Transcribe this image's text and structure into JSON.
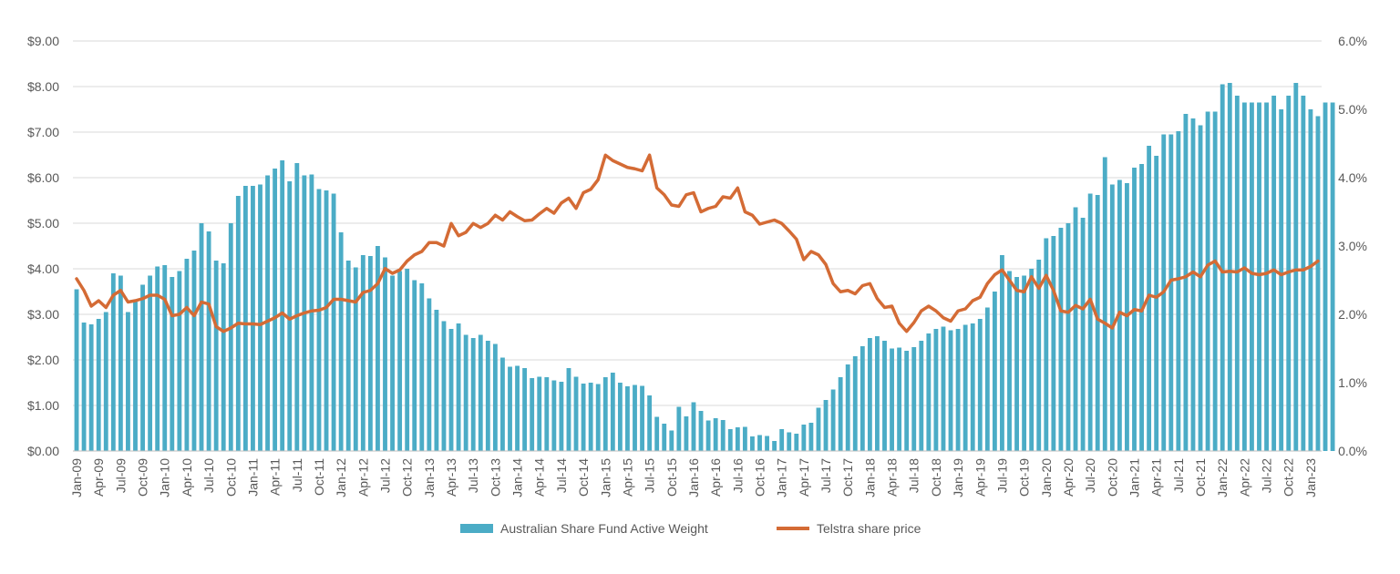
{
  "chart_data": {
    "type": "bar+line",
    "title": "",
    "xlabel": "",
    "ylabel_left": "",
    "ylabel_right": "",
    "grid": "horizontal",
    "legend_position": "bottom",
    "x_start": "2009-01",
    "months": 170,
    "x_tick_labels": [
      "Jan-09",
      "Apr-09",
      "Jul-09",
      "Oct-09",
      "Jan-10",
      "Apr-10",
      "Jul-10",
      "Oct-10",
      "Jan-11",
      "Apr-11",
      "Jul-11",
      "Oct-11",
      "Jan-12",
      "Apr-12",
      "Jul-12",
      "Oct-12",
      "Jan-13",
      "Apr-13",
      "Jul-13",
      "Oct-13",
      "Jan-14",
      "Apr-14",
      "Jul-14",
      "Oct-14",
      "Jan-15",
      "Apr-15",
      "Jul-15",
      "Oct-15",
      "Jan-16",
      "Apr-16",
      "Jul-16",
      "Oct-16",
      "Jan-17",
      "Apr-17",
      "Jul-17",
      "Oct-17",
      "Jan-18",
      "Apr-18",
      "Jul-18",
      "Oct-18",
      "Jan-19",
      "Apr-19",
      "Jul-19",
      "Oct-19",
      "Jan-20",
      "Apr-20",
      "Jul-20",
      "Oct-20",
      "Jan-21",
      "Apr-21",
      "Jul-21",
      "Oct-21",
      "Jan-22",
      "Apr-22",
      "Jul-22",
      "Oct-22",
      "Jan-23"
    ],
    "left_axis": {
      "min": 0,
      "max": 9,
      "step": 1,
      "tick_labels": [
        "$0.00",
        "$1.00",
        "$2.00",
        "$3.00",
        "$4.00",
        "$5.00",
        "$6.00",
        "$7.00",
        "$8.00",
        "$9.00"
      ]
    },
    "right_axis": {
      "min": 0,
      "max": 6,
      "step": 1,
      "tick_labels": [
        "0.0%",
        "1.0%",
        "2.0%",
        "3.0%",
        "4.0%",
        "5.0%",
        "6.0%"
      ]
    },
    "series": [
      {
        "name": "Australian Share Fund Active Weight",
        "type": "bar",
        "axis": "left",
        "color": "#4BACC6",
        "values": [
          3.55,
          2.82,
          2.78,
          2.9,
          3.05,
          3.9,
          3.85,
          3.05,
          3.28,
          3.65,
          3.85,
          4.05,
          4.08,
          3.82,
          3.95,
          4.22,
          4.4,
          5.0,
          4.82,
          4.18,
          4.12,
          5.0,
          5.6,
          5.82,
          5.82,
          5.85,
          6.05,
          6.2,
          6.38,
          5.92,
          6.32,
          6.05,
          6.07,
          5.75,
          5.72,
          5.65,
          4.8,
          4.18,
          4.03,
          4.3,
          4.28,
          4.5,
          4.25,
          3.85,
          3.95,
          4.0,
          3.75,
          3.68,
          3.35,
          3.1,
          2.85,
          2.68,
          2.8,
          2.55,
          2.48,
          2.55,
          2.42,
          2.35,
          2.05,
          1.85,
          1.87,
          1.82,
          1.6,
          1.63,
          1.62,
          1.55,
          1.52,
          1.82,
          1.63,
          1.48,
          1.5,
          1.47,
          1.62,
          1.72,
          1.5,
          1.42,
          1.45,
          1.43,
          1.22,
          0.75,
          0.6,
          0.45,
          0.97,
          0.76,
          1.07,
          0.88,
          0.67,
          0.72,
          0.68,
          0.48,
          0.52,
          0.53,
          0.32,
          0.35,
          0.33,
          0.22,
          0.48,
          0.41,
          0.38,
          0.58,
          0.62,
          0.95,
          1.12,
          1.35,
          1.62,
          1.9,
          2.08,
          2.3,
          2.48,
          2.52,
          2.42,
          2.25,
          2.27,
          2.2,
          2.28,
          2.42,
          2.58,
          2.68,
          2.73,
          2.65,
          2.68,
          2.77,
          2.8,
          2.9,
          3.15,
          3.5,
          4.3,
          3.95,
          3.82,
          3.85,
          4.0,
          4.2,
          4.67,
          4.72,
          4.9,
          5.0,
          5.35,
          5.12,
          5.65,
          5.62,
          6.45,
          5.85,
          5.95,
          5.88,
          6.22,
          6.3,
          6.7,
          6.48,
          6.95,
          6.95,
          7.02,
          7.4,
          7.3,
          7.15,
          7.45,
          7.45,
          8.05,
          8.08,
          7.8,
          7.65,
          7.65,
          7.65,
          7.65,
          7.8,
          7.5,
          7.8,
          8.08,
          7.8,
          7.5,
          7.35,
          7.65,
          7.65
        ]
      },
      {
        "name": "Telstra share price",
        "type": "line",
        "axis": "right",
        "color": "#D46B35",
        "values": [
          2.52,
          2.35,
          2.12,
          2.2,
          2.1,
          2.28,
          2.35,
          2.18,
          2.2,
          2.23,
          2.28,
          2.28,
          2.22,
          1.98,
          2.0,
          2.1,
          1.98,
          2.18,
          2.15,
          1.82,
          1.75,
          1.8,
          1.87,
          1.86,
          1.86,
          1.85,
          1.9,
          1.95,
          2.02,
          1.93,
          1.98,
          2.02,
          2.05,
          2.06,
          2.1,
          2.22,
          2.22,
          2.2,
          2.18,
          2.32,
          2.35,
          2.45,
          2.67,
          2.6,
          2.65,
          2.78,
          2.87,
          2.92,
          3.05,
          3.05,
          3.0,
          3.33,
          3.15,
          3.2,
          3.33,
          3.27,
          3.33,
          3.45,
          3.38,
          3.5,
          3.43,
          3.37,
          3.38,
          3.47,
          3.55,
          3.48,
          3.63,
          3.7,
          3.55,
          3.78,
          3.83,
          3.97,
          4.33,
          4.25,
          4.2,
          4.15,
          4.13,
          4.1,
          4.33,
          3.85,
          3.75,
          3.6,
          3.58,
          3.75,
          3.78,
          3.5,
          3.55,
          3.58,
          3.72,
          3.7,
          3.85,
          3.5,
          3.45,
          3.32,
          3.35,
          3.38,
          3.33,
          3.22,
          3.1,
          2.8,
          2.92,
          2.87,
          2.73,
          2.45,
          2.33,
          2.35,
          2.3,
          2.42,
          2.45,
          2.23,
          2.1,
          2.12,
          1.87,
          1.75,
          1.88,
          2.05,
          2.12,
          2.05,
          1.95,
          1.9,
          2.05,
          2.08,
          2.2,
          2.25,
          2.45,
          2.58,
          2.65,
          2.5,
          2.35,
          2.33,
          2.55,
          2.38,
          2.57,
          2.35,
          2.05,
          2.03,
          2.13,
          2.08,
          2.22,
          1.93,
          1.87,
          1.8,
          2.03,
          1.98,
          2.07,
          2.05,
          2.28,
          2.25,
          2.33,
          2.5,
          2.52,
          2.55,
          2.62,
          2.55,
          2.72,
          2.78,
          2.62,
          2.63,
          2.62,
          2.68,
          2.6,
          2.58,
          2.6,
          2.65,
          2.58,
          2.62,
          2.65,
          2.65,
          2.7,
          2.78
        ]
      }
    ]
  }
}
